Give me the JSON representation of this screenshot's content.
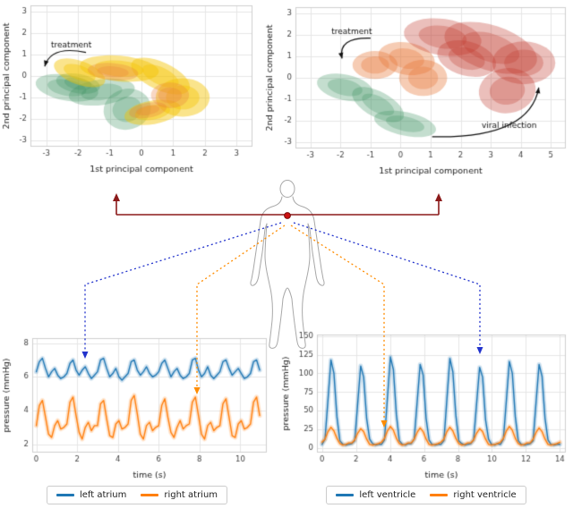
{
  "colors": {
    "blue": "#1f77b4",
    "orange": "#ff7f0e",
    "dark_red": "#8b1a1a",
    "heart_red": "#cc1111",
    "body_outline": "#a8a8a8",
    "grid": "#e6e6e6",
    "spine": "#cfcfcf",
    "tick_text": "#444444",
    "label_text": "#222222",
    "green_blob": "#3a915f",
    "yellow_blob": "#f5c400",
    "orange_blob": "#e8793a",
    "red_blob": "#c0392b",
    "annotation": "#111111"
  },
  "chart_data": {
    "pca_left": {
      "type": "area",
      "title": "",
      "xlabel": "1st principal component",
      "ylabel": "2nd principal component",
      "xlim": [
        -3.5,
        3.5
      ],
      "ylim": [
        -3.3,
        3.3
      ],
      "xticks": [
        -3,
        -2,
        -1,
        0,
        1,
        2,
        3
      ],
      "yticks": [
        -3,
        -2,
        -1,
        0,
        1,
        2,
        3
      ],
      "grid": true,
      "blobs": [
        {
          "color": "green_blob",
          "alpha": 0.3,
          "ellipses": [
            [
              -2.35,
              -0.55,
              1.0,
              0.6,
              -10
            ],
            [
              -1.25,
              -0.75,
              1.05,
              0.6,
              8
            ],
            [
              -0.45,
              -1.55,
              0.75,
              0.95,
              15
            ],
            [
              -2.0,
              -0.35,
              0.7,
              0.45,
              -10
            ]
          ]
        },
        {
          "color": "yellow_blob",
          "alpha": 0.45,
          "ellipses": [
            [
              -1.95,
              0.15,
              0.85,
              0.55,
              -20
            ],
            [
              -0.7,
              0.35,
              1.25,
              0.6,
              -5
            ],
            [
              0.6,
              0.0,
              1.0,
              0.65,
              -25
            ],
            [
              1.3,
              -1.0,
              0.85,
              0.9,
              0
            ],
            [
              0.35,
              -1.7,
              0.9,
              0.55,
              10
            ]
          ]
        },
        {
          "color": "orange_blob",
          "alpha": 0.3,
          "ellipses": [
            [
              -0.9,
              0.2,
              0.8,
              0.4,
              -5
            ],
            [
              0.9,
              -0.9,
              0.6,
              0.6,
              0
            ],
            [
              0.2,
              -1.6,
              0.6,
              0.35,
              10
            ]
          ]
        }
      ],
      "annotations": [
        {
          "text": "treatment",
          "tx": -2.85,
          "ty": 1.35,
          "arrow": {
            "x1": -1.75,
            "y1": 1.1,
            "cx": -2.85,
            "cy": 1.45,
            "x2": -3.05,
            "y2": 0.45
          }
        }
      ]
    },
    "pca_right": {
      "type": "area",
      "title": "",
      "xlabel": "1st principal component",
      "ylabel": "2nd principal component",
      "xlim": [
        -3.5,
        5.5
      ],
      "ylim": [
        -3.3,
        3.3
      ],
      "xticks": [
        -3,
        -2,
        -1,
        0,
        1,
        2,
        3,
        4,
        5
      ],
      "yticks": [
        -3,
        -2,
        -1,
        0,
        1,
        2,
        3
      ],
      "grid": true,
      "blobs": [
        {
          "color": "green_blob",
          "alpha": 0.3,
          "ellipses": [
            [
              -1.85,
              -0.45,
              0.95,
              0.6,
              -12
            ],
            [
              -0.75,
              -1.25,
              0.95,
              0.6,
              -28
            ],
            [
              0.15,
              -2.15,
              1.05,
              0.55,
              -12
            ]
          ]
        },
        {
          "color": "orange_blob",
          "alpha": 0.38,
          "ellipses": [
            [
              -0.85,
              0.6,
              0.75,
              0.65,
              0
            ],
            [
              0.2,
              0.9,
              0.95,
              0.75,
              -10
            ],
            [
              0.75,
              0.0,
              0.8,
              0.85,
              0
            ]
          ]
        },
        {
          "color": "red_blob",
          "alpha": 0.32,
          "ellipses": [
            [
              1.4,
              1.9,
              1.3,
              0.85,
              -8
            ],
            [
              3.0,
              1.4,
              1.6,
              1.05,
              -18
            ],
            [
              4.1,
              0.7,
              1.05,
              1.0,
              0
            ],
            [
              3.55,
              -0.6,
              0.95,
              1.05,
              8
            ],
            [
              2.2,
              0.9,
              1.0,
              0.8,
              -15
            ]
          ]
        }
      ],
      "annotations": [
        {
          "text": "treatment",
          "tx": -2.3,
          "ty": 2.05,
          "arrow": {
            "x1": -1.0,
            "y1": 1.85,
            "cx": -2.1,
            "cy": 1.9,
            "x2": -1.95,
            "y2": 0.9
          }
        },
        {
          "text": "viral infection",
          "tx": 2.7,
          "ty": -2.35,
          "arrow": {
            "x1": 1.05,
            "y1": -2.75,
            "cx": 4.3,
            "cy": -2.85,
            "x2": 4.6,
            "y2": -0.45
          }
        }
      ]
    },
    "atrium": {
      "type": "line",
      "title": "",
      "xlabel": "time (s)",
      "ylabel": "pressure (mmHg)",
      "xlim": [
        -0.2,
        11.3
      ],
      "ylim": [
        1.5,
        8.3
      ],
      "xticks": [
        0,
        2,
        4,
        6,
        8,
        10
      ],
      "yticks": [
        2,
        4,
        6,
        8
      ],
      "grid": true,
      "legend_position": "below",
      "series": [
        {
          "name": "left atrium",
          "color": "blue",
          "dt": 0.15,
          "y": [
            6.3,
            6.9,
            7.1,
            6.5,
            6.0,
            6.3,
            6.5,
            6.1,
            5.9,
            6.0,
            6.2,
            6.8,
            7.0,
            6.4,
            6.1,
            6.4,
            6.6,
            6.2,
            5.9,
            6.1,
            6.3,
            7.0,
            7.1,
            6.5,
            6.0,
            6.2,
            6.5,
            6.0,
            5.8,
            6.0,
            6.2,
            6.9,
            7.0,
            6.4,
            6.1,
            6.3,
            6.6,
            6.2,
            6.0,
            6.1,
            6.3,
            6.8,
            7.0,
            6.5,
            6.0,
            6.3,
            6.5,
            6.1,
            5.9,
            6.0,
            6.2,
            7.0,
            7.1,
            6.4,
            6.0,
            6.2,
            6.6,
            6.1,
            5.9,
            6.1,
            6.3,
            6.9,
            7.0,
            6.5,
            6.1,
            6.3,
            6.5,
            6.2,
            5.9,
            6.0,
            6.2,
            6.9,
            7.0,
            6.4
          ]
        },
        {
          "name": "right atrium",
          "color": "orange",
          "dt": 0.15,
          "y": [
            3.1,
            4.3,
            4.6,
            3.6,
            2.6,
            2.4,
            3.1,
            3.4,
            2.9,
            3.0,
            3.2,
            4.5,
            4.8,
            3.7,
            2.7,
            2.3,
            3.0,
            3.3,
            2.8,
            3.1,
            3.1,
            4.4,
            4.6,
            3.5,
            2.5,
            2.4,
            3.2,
            3.4,
            2.9,
            3.0,
            3.2,
            4.6,
            4.9,
            3.8,
            2.6,
            2.3,
            3.1,
            3.3,
            2.8,
            3.0,
            3.1,
            4.3,
            4.7,
            3.6,
            2.7,
            2.4,
            3.0,
            3.4,
            2.9,
            3.1,
            3.2,
            4.5,
            4.8,
            3.7,
            2.6,
            2.3,
            3.1,
            3.3,
            2.8,
            3.0,
            3.1,
            4.4,
            4.7,
            3.6,
            2.5,
            2.4,
            3.2,
            3.4,
            2.9,
            3.0,
            3.2,
            4.5,
            4.8,
            3.7
          ]
        }
      ]
    },
    "ventricle": {
      "type": "line",
      "title": "",
      "xlabel": "time (s)",
      "ylabel": "pressure (mmHg)",
      "xlim": [
        -0.3,
        14.35
      ],
      "ylim": [
        -6,
        152
      ],
      "xticks": [
        0,
        2,
        4,
        6,
        8,
        10,
        12,
        14
      ],
      "yticks": [
        0,
        25,
        50,
        75,
        100,
        125,
        150
      ],
      "grid": true,
      "legend_position": "below",
      "series": [
        {
          "name": "left ventricle",
          "color": "blue",
          "dt": 0.175,
          "y": [
            5,
            12,
            65,
            118,
            100,
            42,
            10,
            5,
            4,
            5,
            6,
            10,
            60,
            110,
            95,
            40,
            12,
            6,
            4,
            5,
            5,
            11,
            68,
            122,
            105,
            45,
            10,
            5,
            4,
            6,
            6,
            12,
            62,
            112,
            98,
            40,
            11,
            5,
            4,
            5,
            5,
            10,
            66,
            120,
            102,
            44,
            10,
            6,
            4,
            5,
            6,
            11,
            60,
            108,
            95,
            38,
            12,
            5,
            4,
            6,
            5,
            12,
            64,
            116,
            100,
            42,
            10,
            5,
            4,
            5,
            6,
            10,
            62,
            112,
            96,
            40,
            11,
            5,
            4,
            5,
            5
          ]
        },
        {
          "name": "right ventricle",
          "color": "orange",
          "dt": 0.175,
          "y": [
            8,
            12,
            22,
            28,
            23,
            13,
            6,
            4,
            5,
            7,
            7,
            11,
            20,
            26,
            22,
            12,
            5,
            4,
            5,
            6,
            8,
            13,
            23,
            29,
            24,
            13,
            6,
            4,
            5,
            7,
            7,
            12,
            21,
            27,
            22,
            12,
            5,
            4,
            5,
            6,
            8,
            12,
            22,
            28,
            23,
            13,
            6,
            4,
            5,
            7,
            7,
            11,
            20,
            26,
            22,
            12,
            5,
            4,
            5,
            6,
            8,
            13,
            23,
            29,
            24,
            13,
            6,
            4,
            5,
            7,
            7,
            12,
            21,
            27,
            22,
            12,
            5,
            4,
            5,
            6,
            8
          ]
        }
      ]
    }
  },
  "legends": {
    "atrium": [
      "left atrium",
      "right atrium"
    ],
    "ventricle": [
      "left ventricle",
      "right ventricle"
    ]
  },
  "icons": {
    "human_body": "human-body-outline",
    "heart_marker": "heart-dot"
  }
}
